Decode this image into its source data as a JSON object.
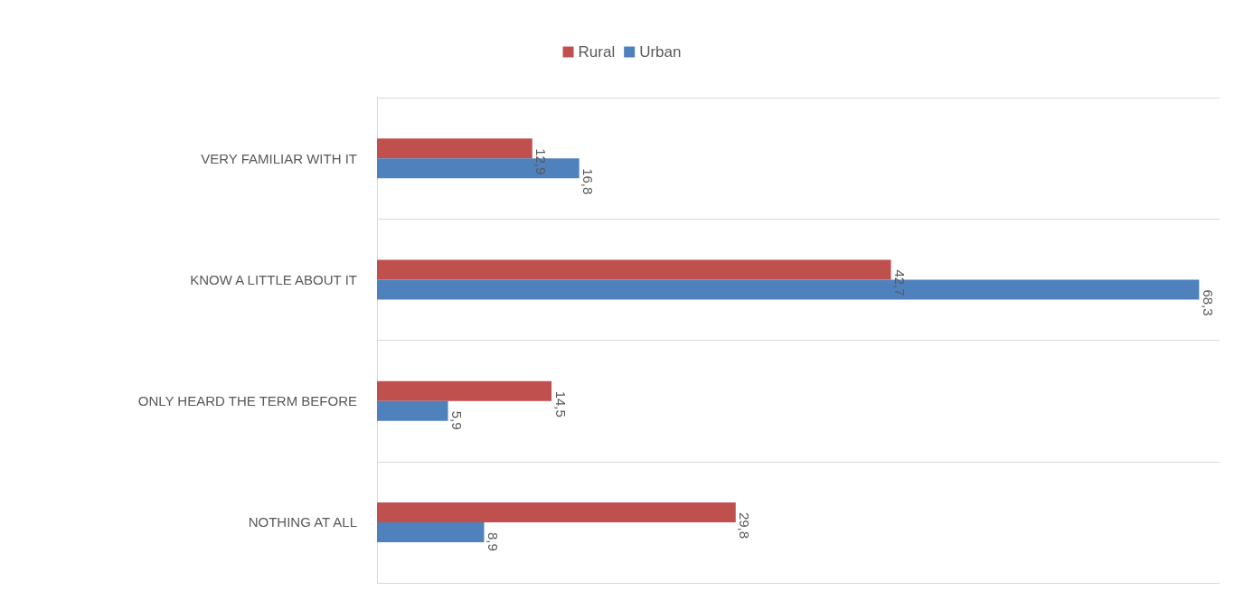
{
  "chart_data": {
    "type": "bar",
    "orientation": "horizontal",
    "categories": [
      "VERY FAMILIAR WITH IT",
      "KNOW A LITTLE ABOUT IT",
      "ONLY HEARD THE TERM BEFORE",
      "NOTHING AT ALL"
    ],
    "series": [
      {
        "name": "Rural",
        "color": "#c0504d",
        "values": [
          12.9,
          42.7,
          14.5,
          29.8
        ],
        "value_labels": [
          "12,9",
          "42,7",
          "14,5",
          "29,8"
        ]
      },
      {
        "name": "Urban",
        "color": "#4f81bd",
        "values": [
          16.8,
          68.3,
          5.9,
          8.9
        ],
        "value_labels": [
          "16,8",
          "68,3",
          "5,9",
          "8,9"
        ]
      }
    ],
    "grid": "y",
    "legend": "top"
  }
}
